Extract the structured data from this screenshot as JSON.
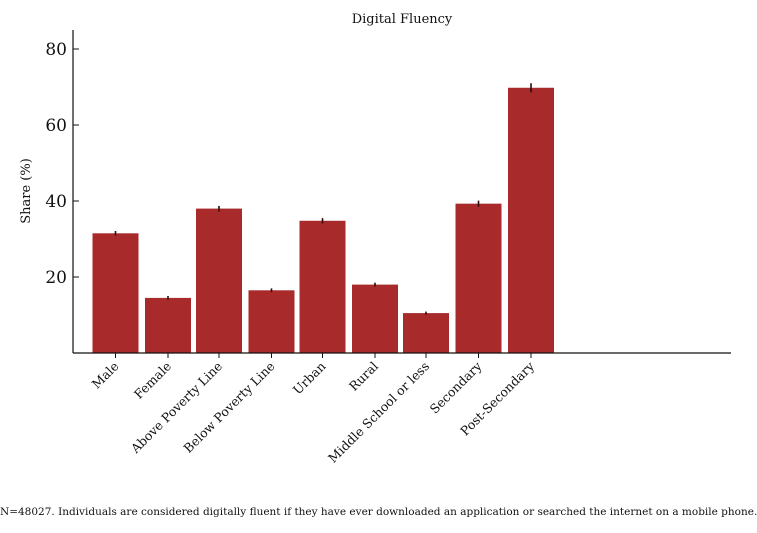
{
  "chart_data": {
    "type": "bar",
    "title": "Digital Fluency",
    "xlabel": "",
    "ylabel": "Share (%)",
    "ylim": [
      0,
      85
    ],
    "yticks": [
      20,
      40,
      60,
      80
    ],
    "bar_color": "#a82a2b",
    "error_color": "#2a0b0b",
    "groups": [
      {
        "bars": [
          {
            "label": "Male",
            "value": 31.5,
            "err": 0.6
          },
          {
            "label": "Female",
            "value": 14.5,
            "err": 0.5
          }
        ]
      },
      {
        "bars": [
          {
            "label": "Above Poverty Line",
            "value": 38.0,
            "err": 0.7
          },
          {
            "label": "Below Poverty Line",
            "value": 16.5,
            "err": 0.5
          }
        ]
      },
      {
        "bars": [
          {
            "label": "Urban",
            "value": 34.8,
            "err": 0.7
          },
          {
            "label": "Rural",
            "value": 18.0,
            "err": 0.5
          }
        ]
      },
      {
        "bars": [
          {
            "label": "Middle School or less",
            "value": 10.5,
            "err": 0.4
          },
          {
            "label": "Secondary",
            "value": 39.3,
            "err": 0.8
          },
          {
            "label": "Post-Secondary",
            "value": 69.8,
            "err": 1.2
          }
        ]
      }
    ]
  },
  "footnote": "N=48027. Individuals are considered digitally fluent if they have ever downloaded an application or searched the internet on a mobile phone."
}
